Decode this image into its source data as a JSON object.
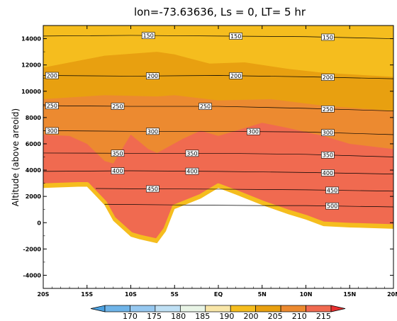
{
  "chart_data": {
    "type": "contour",
    "title": "lon=-73.63636, Ls = 0, LT= 5 hr",
    "ylabel": "Altitude (above areoid)",
    "xlabel": "",
    "xlim": [
      -20,
      20
    ],
    "ylim": [
      -5000,
      15000
    ],
    "x_ticks": [
      -20,
      -15,
      -10,
      -5,
      0,
      5,
      10,
      15,
      20
    ],
    "x_tick_labels": [
      "20S",
      "15S",
      "10S",
      "5S",
      "EQ",
      "5N",
      "10N",
      "15N",
      "20N"
    ],
    "y_ticks": [
      -4000,
      -2000,
      0,
      2000,
      4000,
      6000,
      8000,
      10000,
      12000,
      14000
    ],
    "y_tick_labels": [
      "-4000",
      "-2000",
      "0",
      "2000",
      "4000",
      "6000",
      "8000",
      "10000",
      "12000",
      "14000"
    ],
    "colorbar": {
      "levels": [
        170,
        175,
        180,
        185,
        190,
        195,
        200,
        205,
        210,
        215
      ],
      "labels": [
        "170",
        "175",
        "180",
        "185",
        "190",
        "200",
        "205",
        "210",
        "215"
      ],
      "colors": [
        "#4aa0e0",
        "#6fb4e8",
        "#96c8f0",
        "#bfe0f4",
        "#e8f4e6",
        "#f8e6a8",
        "#f5bd1e",
        "#e8a010",
        "#ec8a30",
        "#f06a50",
        "#e83030"
      ]
    },
    "terrain": {
      "x": [
        -20,
        -16,
        -15,
        -13,
        -12,
        -10,
        -9,
        -7,
        -6,
        -5,
        -2,
        0,
        2,
        5,
        8,
        10,
        12,
        15,
        20
      ],
      "y": [
        2800,
        2900,
        2900,
        1500,
        300,
        -900,
        -1100,
        -1400,
        -500,
        1200,
        2000,
        2800,
        2300,
        1500,
        800,
        400,
        -100,
        -200,
        -300
      ]
    },
    "filled_regions": [
      {
        "level": "190-195",
        "color": "#f5bd1e",
        "top_x": [
          -20,
          20
        ],
        "top_y": [
          15000,
          15000
        ]
      },
      {
        "level": "195-200",
        "color": "#e8a010",
        "top_x": [
          -20,
          -13,
          -7,
          -5,
          -1,
          3,
          8,
          12,
          20
        ],
        "top_y": [
          11800,
          12700,
          13000,
          12800,
          12100,
          12200,
          11700,
          11400,
          11100
        ]
      },
      {
        "level": "200-205",
        "color": "#ec8a30",
        "top_x": [
          -20,
          -13,
          -7,
          -5,
          0,
          6,
          12,
          20
        ],
        "top_y": [
          9400,
          9700,
          9600,
          9700,
          9300,
          9400,
          8900,
          8500
        ]
      },
      {
        "level": "205-210",
        "color": "#f06a50",
        "top_x": [
          -20,
          -17,
          -15,
          -13,
          -12,
          -10,
          -8,
          -7,
          -4,
          -2,
          0,
          3,
          5,
          8,
          12,
          15,
          20
        ],
        "top_y": [
          6700,
          6600,
          6000,
          4700,
          4500,
          6700,
          5600,
          5300,
          6400,
          7000,
          6600,
          7200,
          7600,
          7200,
          6600,
          6000,
          5600
        ]
      }
    ],
    "contour_lines": [
      {
        "label": "150",
        "x": [
          -20,
          -10,
          0,
          10,
          20
        ],
        "y": [
          14200,
          14250,
          14200,
          14150,
          14000
        ],
        "label_x": [
          -8,
          2,
          12.5
        ]
      },
      {
        "label": "200",
        "x": [
          -20,
          -10,
          0,
          10,
          20
        ],
        "y": [
          11200,
          11150,
          11200,
          11100,
          10950
        ],
        "label_x": [
          -19,
          -7.5,
          2,
          12.5
        ]
      },
      {
        "label": "250",
        "x": [
          -20,
          -10,
          0,
          10,
          20
        ],
        "y": [
          8900,
          8850,
          8850,
          8700,
          8500
        ],
        "label_x": [
          -19,
          -11.5,
          -1.5,
          12.5
        ]
      },
      {
        "label": "300",
        "x": [
          -20,
          -10,
          0,
          10,
          20
        ],
        "y": [
          7000,
          6950,
          6950,
          6900,
          6700
        ],
        "label_x": [
          -19,
          -7.5,
          4,
          12.5
        ]
      },
      {
        "label": "350",
        "x": [
          -20,
          -10,
          0,
          10,
          20
        ],
        "y": [
          5300,
          5280,
          5280,
          5200,
          5000
        ],
        "label_x": [
          -11.5,
          -3,
          12.5
        ]
      },
      {
        "label": "400",
        "x": [
          -20,
          -10,
          0,
          10,
          20
        ],
        "y": [
          3900,
          3950,
          3900,
          3820,
          3700
        ],
        "label_x": [
          -11.5,
          -3,
          12.5
        ]
      },
      {
        "label": "450",
        "x": [
          -14,
          -10,
          0,
          10,
          20
        ],
        "y": [
          2600,
          2580,
          2550,
          2500,
          2400
        ],
        "label_x": [
          -7.5,
          13
        ]
      },
      {
        "label": "500",
        "x": [
          -13,
          -5,
          5,
          10,
          20
        ],
        "y": [
          1400,
          1350,
          1300,
          1300,
          1200
        ],
        "label_x": [
          13
        ]
      }
    ]
  }
}
